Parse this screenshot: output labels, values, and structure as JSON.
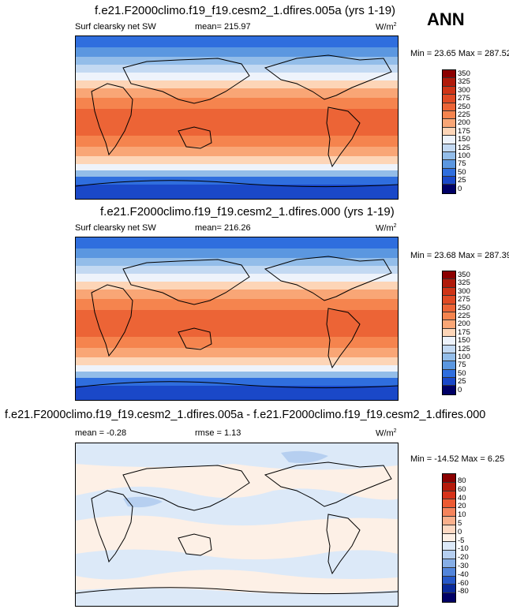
{
  "season": "ANN",
  "panels": [
    {
      "title": "f.e21.F2000climo.f19_f19.cesm2_1.dfires.005a (yrs 1-19)",
      "left_label": "Surf clearsky net SW",
      "center_label": "mean= 215.97",
      "units": "W/m",
      "units_sup": "2",
      "minmax": "Min =  23.65 Max = 287.52",
      "colorbar_ticks": [
        "350",
        "325",
        "300",
        "275",
        "250",
        "225",
        "200",
        "175",
        "150",
        "125",
        "100",
        "75",
        "50",
        "25",
        "0"
      ],
      "colorbar_colors": [
        "#8b0000",
        "#b01a0a",
        "#cf3416",
        "#e04a24",
        "#ec6436",
        "#f5844e",
        "#f9a676",
        "#fdd5b7",
        "#eef3fb",
        "#c3d9f2",
        "#93bde9",
        "#5b97e0",
        "#2f6ede",
        "#1a48c8",
        "#081e9a",
        "#000066"
      ]
    },
    {
      "title": "f.e21.F2000climo.f19_f19.cesm2_1.dfires.000 (yrs 1-19)",
      "left_label": "Surf clearsky net SW",
      "center_label": "mean= 216.26",
      "units": "W/m",
      "units_sup": "2",
      "minmax": "Min =  23.68 Max = 287.39",
      "colorbar_ticks": [
        "350",
        "325",
        "300",
        "275",
        "250",
        "225",
        "200",
        "175",
        "150",
        "125",
        "100",
        "75",
        "50",
        "25",
        "0"
      ],
      "colorbar_colors": [
        "#8b0000",
        "#b01a0a",
        "#cf3416",
        "#e04a24",
        "#ec6436",
        "#f5844e",
        "#f9a676",
        "#fdd5b7",
        "#eef3fb",
        "#c3d9f2",
        "#93bde9",
        "#5b97e0",
        "#2f6ede",
        "#1a48c8",
        "#081e9a",
        "#000066"
      ]
    },
    {
      "title": "f.e21.F2000climo.f19_f19.cesm2_1.dfires.005a - f.e21.F2000climo.f19_f19.cesm2_1.dfires.000",
      "left_label": "mean =  -0.28",
      "center_label": "rmse =   1.13",
      "units": "W/m",
      "units_sup": "2",
      "minmax": "Min = -14.52 Max =   6.25",
      "colorbar_ticks": [
        "80",
        "60",
        "40",
        "20",
        "10",
        "5",
        "0",
        "-5",
        "-10",
        "-20",
        "-30",
        "-40",
        "-60",
        "-80"
      ],
      "colorbar_colors": [
        "#8b0000",
        "#b51a0a",
        "#d6321a",
        "#ec5a32",
        "#f5845c",
        "#f9b08c",
        "#fdd9c3",
        "#fdf0e6",
        "#dce9f8",
        "#b6cff0",
        "#86aee6",
        "#5285db",
        "#2658c8",
        "#0a2a9a",
        "#000066"
      ]
    }
  ],
  "chart_data": [
    {
      "type": "heatmap",
      "title": "f.e21.F2000climo.f19_f19.cesm2_1.dfires.005a (yrs 1-19)",
      "variable": "Surf clearsky net SW",
      "units": "W/m2",
      "mean": 215.97,
      "min": 23.65,
      "max": 287.52,
      "levels": [
        0,
        25,
        50,
        75,
        100,
        125,
        150,
        175,
        200,
        225,
        250,
        275,
        300,
        325,
        350
      ]
    },
    {
      "type": "heatmap",
      "title": "f.e21.F2000climo.f19_f19.cesm2_1.dfires.000 (yrs 1-19)",
      "variable": "Surf clearsky net SW",
      "units": "W/m2",
      "mean": 216.26,
      "min": 23.68,
      "max": 287.39,
      "levels": [
        0,
        25,
        50,
        75,
        100,
        125,
        150,
        175,
        200,
        225,
        250,
        275,
        300,
        325,
        350
      ]
    },
    {
      "type": "heatmap",
      "title": "f.e21.F2000climo.f19_f19.cesm2_1.dfires.005a - f.e21.F2000climo.f19_f19.cesm2_1.dfires.000",
      "units": "W/m2",
      "mean": -0.28,
      "rmse": 1.13,
      "min": -14.52,
      "max": 6.25,
      "levels": [
        -80,
        -60,
        -40,
        -30,
        -20,
        -10,
        -5,
        0,
        5,
        10,
        20,
        40,
        60,
        80
      ]
    }
  ]
}
